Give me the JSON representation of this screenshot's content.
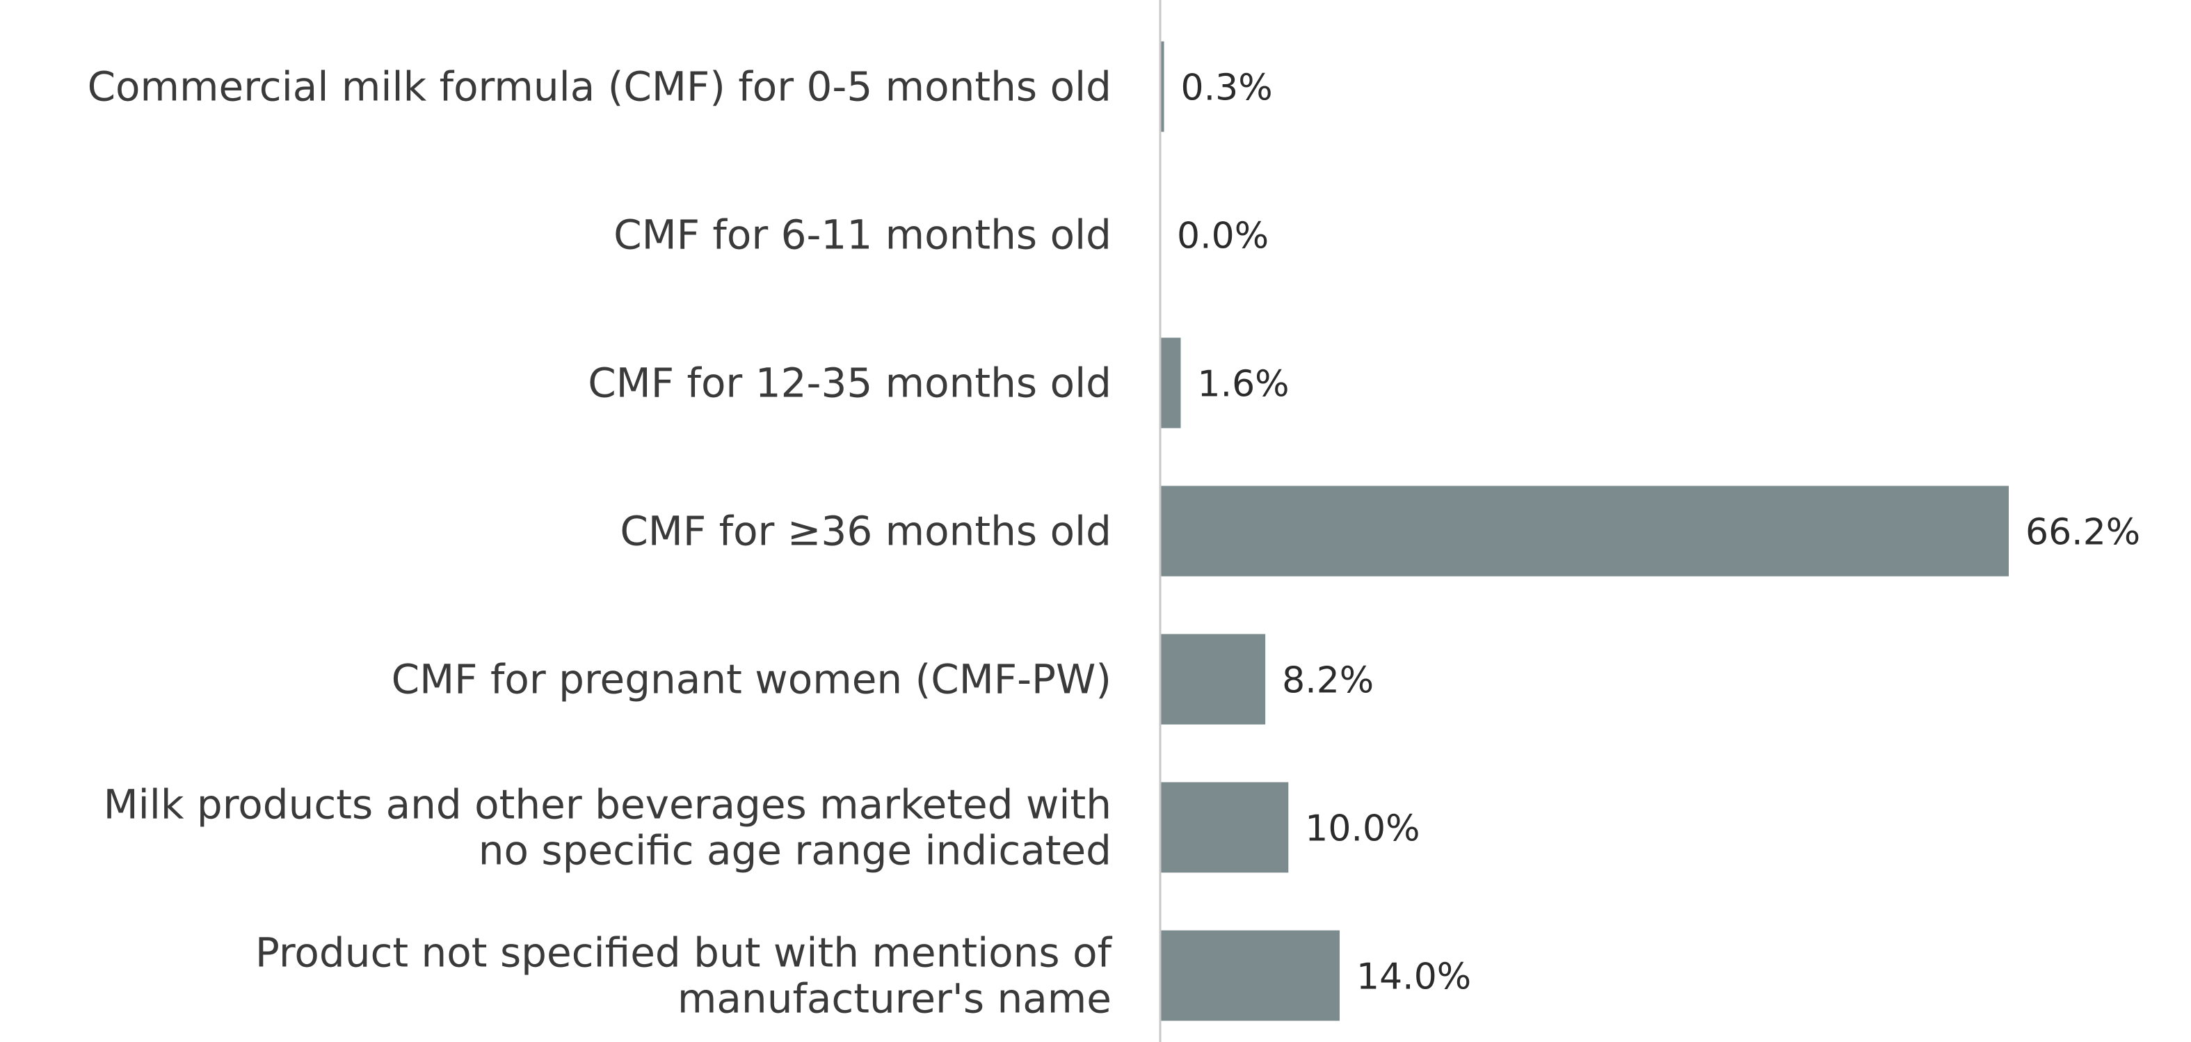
{
  "chart_data": {
    "type": "bar",
    "orientation": "horizontal",
    "categories": [
      "Commercial milk formula (CMF) for 0-5 months old",
      "CMF for 6-11 months old",
      "CMF for 12-35 months old",
      "CMF for ≥36 months old",
      "CMF for pregnant women (CMF-PW)",
      "Milk products and other beverages marketed with no specific age range indicated",
      "Product not specified but with mentions of manufacturer's name"
    ],
    "category_lines": [
      [
        "Commercial milk formula (CMF) for 0-5 months old"
      ],
      [
        "CMF for 6-11 months old"
      ],
      [
        "CMF for 12-35 months old"
      ],
      [
        "CMF for ≥36 months old"
      ],
      [
        "CMF for pregnant women (CMF-PW)"
      ],
      [
        "Milk products and other beverages marketed with",
        "no specific age range indicated"
      ],
      [
        "Product not specified but with mentions of",
        "manufacturer's name"
      ]
    ],
    "values": [
      0.3,
      0.0,
      1.6,
      66.2,
      8.2,
      10.0,
      14.0
    ],
    "value_labels": [
      "0.3%",
      "0.0%",
      "1.6%",
      "66.2%",
      "8.2%",
      "10.0%",
      "14.0%"
    ],
    "unit": "%",
    "xlim": [
      0,
      66.2
    ],
    "grid": false,
    "legend": "none",
    "colors": {
      "bar": "#7b8b8e",
      "axis": "#c8c8c8",
      "label": "#3a3a3a",
      "value": "#2b2b2b"
    }
  }
}
